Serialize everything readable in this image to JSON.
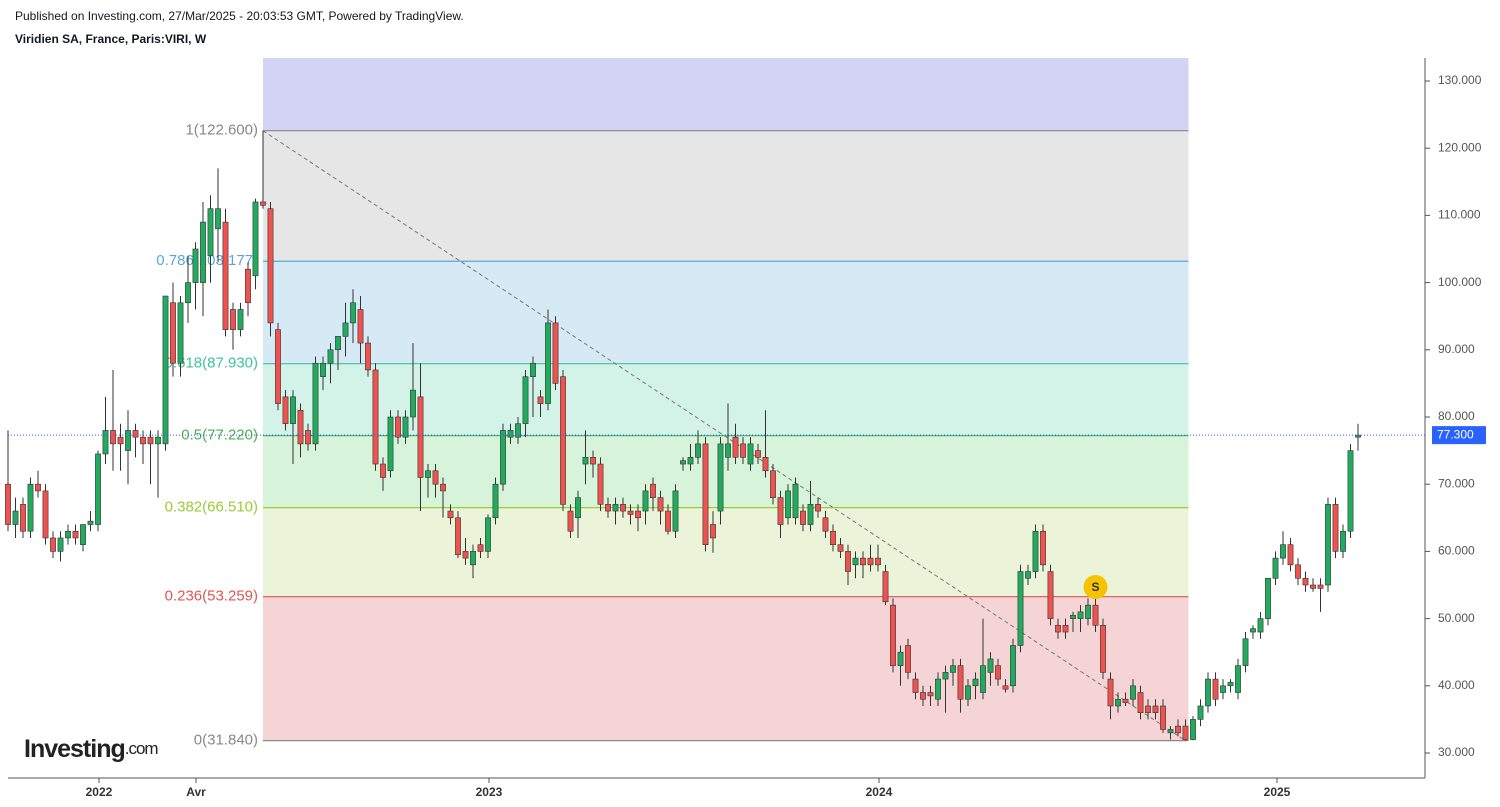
{
  "header": {
    "published": "Published on Investing.com, 27/Mar/2025 - 20:03:53 GMT, Powered by TradingView.",
    "symbol": "Viridien SA, France, Paris:VIRI, W",
    "logo": "Investing",
    "logo_suffix": ".com"
  },
  "chart_data": {
    "type": "candlestick",
    "up_color": "#22ab5e",
    "down_color": "#ef5350",
    "candles": [
      [
        70,
        78,
        63,
        64
      ],
      [
        64,
        68,
        62,
        66
      ],
      [
        67,
        68,
        62,
        63
      ],
      [
        63,
        71,
        62,
        70
      ],
      [
        70,
        72,
        68,
        69
      ],
      [
        69,
        70,
        61,
        62
      ],
      [
        62,
        63,
        59,
        60
      ],
      [
        60,
        63,
        58.5,
        62
      ],
      [
        62,
        64,
        61,
        63
      ],
      [
        63,
        64,
        61,
        62
      ],
      [
        61,
        64,
        60,
        64
      ],
      [
        64,
        66,
        63,
        64.5
      ],
      [
        64,
        75,
        63,
        74.5
      ],
      [
        74.5,
        83,
        73,
        78
      ],
      [
        78,
        87,
        72,
        76
      ],
      [
        77,
        79,
        72,
        76
      ],
      [
        75,
        81,
        70,
        78
      ],
      [
        78,
        79,
        74,
        77
      ],
      [
        77,
        78,
        73,
        76
      ],
      [
        77,
        78,
        70,
        76
      ],
      [
        76,
        78,
        68,
        77
      ],
      [
        76,
        98,
        75,
        98
      ],
      [
        97,
        100,
        86,
        88
      ],
      [
        88,
        98,
        86,
        97
      ],
      [
        97,
        104,
        94,
        100
      ],
      [
        100,
        106,
        96,
        105
      ],
      [
        100,
        112,
        95,
        109
      ],
      [
        104,
        113,
        100,
        111
      ],
      [
        108,
        117,
        103,
        111
      ],
      [
        109,
        111,
        92,
        93
      ],
      [
        96,
        97,
        90,
        93
      ],
      [
        93,
        97,
        92,
        96
      ],
      [
        102,
        103,
        95,
        97
      ],
      [
        101,
        112.5,
        99,
        112
      ],
      [
        112,
        122.6,
        111,
        111.5
      ],
      [
        111,
        112,
        92,
        94
      ],
      [
        93,
        94,
        81,
        82
      ],
      [
        83,
        84,
        78,
        79
      ],
      [
        79,
        84,
        73,
        83
      ],
      [
        81,
        82,
        74,
        76
      ],
      [
        78,
        79,
        75,
        76
      ],
      [
        76,
        89,
        75,
        88
      ],
      [
        86,
        89,
        84,
        88
      ],
      [
        88,
        91,
        85,
        90
      ],
      [
        90,
        92,
        87,
        92
      ],
      [
        92,
        97,
        89,
        94
      ],
      [
        94,
        99,
        91,
        97
      ],
      [
        96,
        98,
        88,
        91
      ],
      [
        91,
        92,
        86,
        87
      ],
      [
        87,
        88,
        72,
        73
      ],
      [
        73,
        74,
        69,
        71
      ],
      [
        72,
        81,
        71,
        80
      ],
      [
        80,
        81,
        76,
        77
      ],
      [
        77,
        81,
        76,
        80
      ],
      [
        80,
        91,
        78,
        84
      ],
      [
        83,
        88,
        66,
        71
      ],
      [
        71,
        73,
        68,
        72
      ],
      [
        72,
        73,
        68,
        70
      ],
      [
        70,
        71,
        65,
        69
      ],
      [
        66,
        67,
        64,
        65
      ],
      [
        65,
        66,
        59,
        59.5
      ],
      [
        60,
        62,
        58,
        59
      ],
      [
        58,
        61,
        56,
        60
      ],
      [
        61,
        62,
        59,
        60
      ],
      [
        60,
        65.5,
        59,
        65
      ],
      [
        65,
        71,
        64,
        70
      ],
      [
        70,
        79,
        69,
        78
      ],
      [
        77,
        79,
        76,
        78
      ],
      [
        77,
        80,
        76,
        79
      ],
      [
        79,
        87,
        77,
        86
      ],
      [
        86,
        89,
        80,
        88
      ],
      [
        83,
        84,
        80,
        82
      ],
      [
        82,
        96,
        81,
        94
      ],
      [
        94,
        95,
        84,
        85
      ],
      [
        86,
        87,
        66,
        67
      ],
      [
        66,
        67,
        62,
        63
      ],
      [
        65,
        69,
        62,
        68
      ],
      [
        73,
        78,
        70,
        74
      ],
      [
        74,
        75,
        71,
        73
      ],
      [
        73,
        74,
        66,
        67
      ],
      [
        67,
        68,
        65,
        66
      ],
      [
        66,
        68,
        64,
        67
      ],
      [
        67,
        68,
        65,
        66
      ],
      [
        66,
        67,
        64,
        65.5
      ],
      [
        66,
        67,
        63,
        65
      ],
      [
        66,
        70,
        64,
        69
      ],
      [
        70,
        71,
        66,
        68
      ],
      [
        68,
        69,
        64,
        66
      ],
      [
        66,
        67,
        62.5,
        63
      ],
      [
        63,
        70,
        62,
        69
      ],
      [
        73,
        74,
        72,
        73.5
      ],
      [
        73,
        76,
        72,
        74
      ],
      [
        74,
        78,
        73,
        76
      ],
      [
        76,
        77,
        60,
        61
      ],
      [
        64,
        66,
        59.8,
        62
      ],
      [
        66,
        77,
        64,
        76
      ],
      [
        74,
        82,
        72,
        76
      ],
      [
        77,
        79,
        73,
        74
      ],
      [
        76,
        77,
        73,
        74
      ],
      [
        73,
        77,
        72,
        76
      ],
      [
        75,
        76,
        73,
        74
      ],
      [
        74,
        81,
        71,
        72
      ],
      [
        72,
        73,
        67,
        68
      ],
      [
        68,
        69,
        62,
        64
      ],
      [
        65,
        70,
        64,
        69
      ],
      [
        65,
        71,
        64,
        70
      ],
      [
        66,
        67,
        63,
        64
      ],
      [
        64,
        70.5,
        63,
        67
      ],
      [
        67,
        68,
        65,
        66
      ],
      [
        65,
        66,
        62,
        63
      ],
      [
        63,
        64,
        60,
        61
      ],
      [
        61,
        62,
        59,
        60
      ],
      [
        60,
        61,
        55,
        57
      ],
      [
        58,
        60,
        56,
        59
      ],
      [
        59,
        60,
        56,
        58
      ],
      [
        59,
        61,
        57,
        58
      ],
      [
        59,
        61,
        57,
        58
      ],
      [
        57,
        58,
        52,
        52.5
      ],
      [
        52,
        53,
        42,
        43
      ],
      [
        43,
        46,
        40,
        45
      ],
      [
        46,
        47,
        41,
        42
      ],
      [
        41,
        42,
        38,
        39
      ],
      [
        39,
        40,
        37,
        38
      ],
      [
        39,
        40,
        37,
        38.5
      ],
      [
        38,
        42,
        37,
        41
      ],
      [
        41,
        43,
        36,
        42
      ],
      [
        42,
        44,
        40,
        43
      ],
      [
        43,
        44,
        36,
        38
      ],
      [
        38,
        41,
        37,
        40
      ],
      [
        40,
        42,
        38,
        41
      ],
      [
        39,
        50,
        38,
        43
      ],
      [
        42,
        45,
        40,
        44
      ],
      [
        43,
        44,
        40,
        41
      ],
      [
        40,
        41,
        39,
        39.5
      ],
      [
        40,
        47,
        39,
        46
      ],
      [
        46,
        58,
        45,
        57
      ],
      [
        56,
        58,
        55,
        57
      ],
      [
        57,
        64,
        56,
        63
      ],
      [
        63,
        64,
        57,
        58
      ],
      [
        57,
        58,
        49,
        50
      ],
      [
        49,
        50,
        47,
        48
      ],
      [
        49,
        50,
        47,
        48
      ],
      [
        50,
        51,
        48,
        50.5
      ],
      [
        50,
        52,
        48,
        51
      ],
      [
        50,
        53,
        49,
        52
      ],
      [
        52,
        53,
        48,
        49
      ],
      [
        49,
        50,
        41,
        42
      ],
      [
        41,
        42,
        35,
        37
      ],
      [
        37,
        39,
        36,
        38
      ],
      [
        38,
        39,
        37,
        37.5
      ],
      [
        38,
        41,
        37,
        40
      ],
      [
        39,
        40,
        35,
        36
      ],
      [
        37,
        38,
        35,
        36
      ],
      [
        37,
        38,
        35,
        36
      ],
      [
        37,
        38,
        33,
        33.5
      ],
      [
        33,
        34,
        32,
        33.5
      ],
      [
        34,
        35,
        32.5,
        33
      ],
      [
        34,
        35,
        31.84,
        32
      ],
      [
        32,
        35.5,
        31.9,
        35
      ],
      [
        35,
        38,
        34,
        37
      ],
      [
        37,
        42,
        36,
        41
      ],
      [
        41,
        42,
        37,
        38
      ],
      [
        39,
        41,
        38,
        40
      ],
      [
        40,
        41,
        39,
        40.5
      ],
      [
        39,
        44,
        38,
        43
      ],
      [
        43,
        48,
        42,
        47
      ],
      [
        48,
        49,
        47,
        48.5
      ],
      [
        48,
        51,
        47,
        50
      ],
      [
        50,
        56,
        49,
        56
      ],
      [
        56,
        60,
        55,
        59
      ],
      [
        59,
        63,
        58,
        61
      ],
      [
        61,
        62,
        57,
        58
      ],
      [
        58,
        59,
        55,
        56
      ],
      [
        56,
        57,
        54,
        55
      ],
      [
        55,
        56,
        54,
        54.5
      ],
      [
        55,
        56,
        51,
        54.5
      ],
      [
        55,
        68,
        54,
        67
      ],
      [
        67,
        68,
        59,
        60
      ],
      [
        60,
        64,
        59,
        63
      ],
      [
        63,
        76,
        62,
        75
      ],
      [
        77,
        79,
        75,
        77.3
      ]
    ],
    "xlim": [
      -0.5,
      188.5
    ],
    "xticks": [
      {
        "value": 12.13,
        "label": "2022"
      },
      {
        "value": 25.07,
        "label": "Avr"
      },
      {
        "value": 64.13,
        "label": "2023"
      },
      {
        "value": 116.13,
        "label": "2024"
      },
      {
        "value": 169.2,
        "label": "2025"
      }
    ],
    "ylim": [
      26.28,
      133.42
    ],
    "yticks": [
      {
        "value": 30,
        "label": "30.000"
      },
      {
        "value": 40,
        "label": "40.000"
      },
      {
        "value": 50,
        "label": "50.000"
      },
      {
        "value": 60,
        "label": "60.000"
      },
      {
        "value": 70,
        "label": "70.000"
      },
      {
        "value": 80,
        "label": "80.000"
      },
      {
        "value": 90,
        "label": "90.000"
      },
      {
        "value": 100,
        "label": "100.000"
      },
      {
        "value": 110,
        "label": "110.000"
      },
      {
        "value": 120,
        "label": "120.000"
      },
      {
        "value": 130,
        "label": "130.000"
      }
    ],
    "last_price": {
      "value": 77.3,
      "label": "77.300",
      "color": "#2962ff"
    },
    "fib_levels": [
      {
        "label": "1(122.600)",
        "value": 122.6,
        "color": "#888888",
        "fill": "#e6e6e6"
      },
      {
        "label": "0.786(103.177)",
        "value": 103.177,
        "color": "#5aa7d4",
        "fill": "#d6eaf6"
      },
      {
        "label": "0.618(87.930)",
        "value": 87.93,
        "color": "#3fc39a",
        "fill": "#d3f3e8"
      },
      {
        "label": "0.5(77.220)",
        "value": 77.22,
        "color": "#4caf50",
        "fill": "#d7f3da"
      },
      {
        "label": "0.382(66.510)",
        "value": 66.51,
        "color": "#9acd32",
        "fill": "#ebf4d8"
      },
      {
        "label": "0.236(53.259)",
        "value": 53.259,
        "color": "#e05555",
        "fill": "#f4d4d4"
      },
      {
        "label": "0(31.840)",
        "value": 31.84,
        "color": "#888888"
      }
    ],
    "fib_top_fill": "#d3d3f3",
    "annotation": {
      "text": "S",
      "x": 145,
      "y": 54.7,
      "color": "#f5c400"
    }
  }
}
